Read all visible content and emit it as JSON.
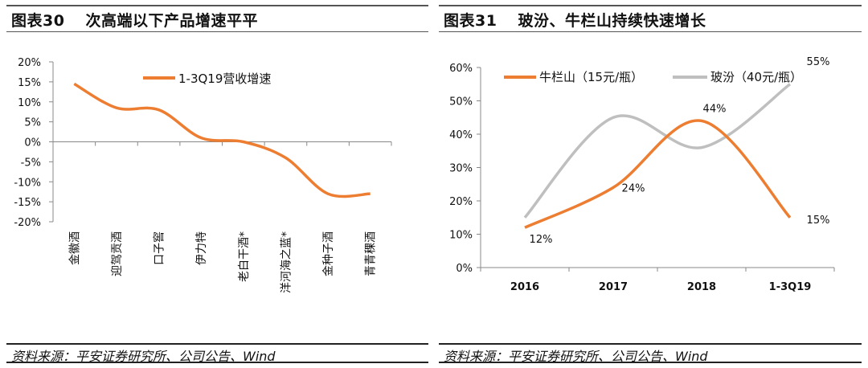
{
  "left": {
    "figure_number": "图表30",
    "title": "次高端以下产品增速平平",
    "source": "资料来源：平安证券研究所、公司公告、Wind"
  },
  "right": {
    "figure_number": "图表31",
    "title": "玻汾、牛栏山持续快速增长",
    "source": "资料来源：平安证券研究所、公司公告、Wind"
  },
  "chart_data": [
    {
      "type": "line",
      "smooth": true,
      "categories": [
        "金徽酒",
        "迎驾贡酒",
        "口子窖",
        "伊力特",
        "老白干酒*",
        "洋河海之蓝*",
        "金种子酒",
        "青青稞酒"
      ],
      "series": [
        {
          "name": "1-3Q19营收增速",
          "values": [
            14.5,
            8.5,
            8,
            1,
            0,
            -4,
            -13,
            -13
          ],
          "color": "#ED7D31"
        }
      ],
      "yticks": [
        "20%",
        "15%",
        "10%",
        "5%",
        "0%",
        "-5%",
        "-10%",
        "-15%",
        "-20%"
      ],
      "ylim": [
        -20,
        20
      ],
      "unit": "%",
      "grid": false,
      "legend": "top"
    },
    {
      "type": "line",
      "smooth": true,
      "categories": [
        "2016",
        "2017",
        "2018",
        "1-3Q19"
      ],
      "series": [
        {
          "name": "牛栏山（15元/瓶）",
          "values": [
            12,
            24,
            44,
            15
          ],
          "color": "#ED7D31",
          "labels": [
            "12%",
            "24%",
            "44%",
            "15%"
          ]
        },
        {
          "name": "玻汾（40元/瓶）",
          "values": [
            15,
            45,
            36,
            55
          ],
          "color": "#BFBFBF",
          "labels": [
            "",
            "",
            "",
            "55%"
          ]
        }
      ],
      "yticks": [
        "60%",
        "50%",
        "40%",
        "30%",
        "20%",
        "10%",
        "0%"
      ],
      "ylim": [
        0,
        60
      ],
      "unit": "%",
      "grid": false,
      "legend": "top"
    }
  ]
}
